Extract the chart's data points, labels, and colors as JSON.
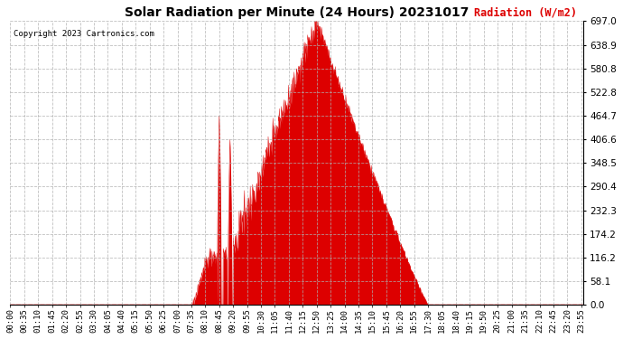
{
  "title": "Solar Radiation per Minute (24 Hours) 20231017",
  "ylabel": "Radiation (W/m2)",
  "copyright": "Copyright 2023 Cartronics.com",
  "fill_color": "#dd0000",
  "line_color": "#dd0000",
  "background_color": "#ffffff",
  "grid_color": "#b0b0b0",
  "title_color": "#000000",
  "ylabel_color": "#dd0000",
  "copyright_color": "#000000",
  "ymin": 0.0,
  "ymax": 697.0,
  "yticks": [
    0.0,
    58.1,
    116.2,
    174.2,
    232.3,
    290.4,
    348.5,
    406.6,
    464.7,
    522.8,
    580.8,
    638.9,
    697.0
  ],
  "total_minutes": 1440,
  "sunrise_minute": 455,
  "sunset_minute": 1050,
  "peak_minute": 770,
  "peak_value": 697.0,
  "xtick_labels": [
    "00:00",
    "00:35",
    "01:10",
    "01:45",
    "02:20",
    "02:55",
    "03:30",
    "04:05",
    "04:40",
    "05:15",
    "05:50",
    "06:25",
    "07:00",
    "07:35",
    "08:10",
    "08:45",
    "09:20",
    "09:55",
    "10:30",
    "11:05",
    "11:40",
    "12:15",
    "12:50",
    "13:25",
    "14:00",
    "14:35",
    "15:10",
    "15:45",
    "16:20",
    "16:55",
    "17:30",
    "18:05",
    "18:40",
    "19:15",
    "19:50",
    "20:25",
    "21:00",
    "21:35",
    "22:10",
    "22:45",
    "23:20",
    "23:55"
  ]
}
